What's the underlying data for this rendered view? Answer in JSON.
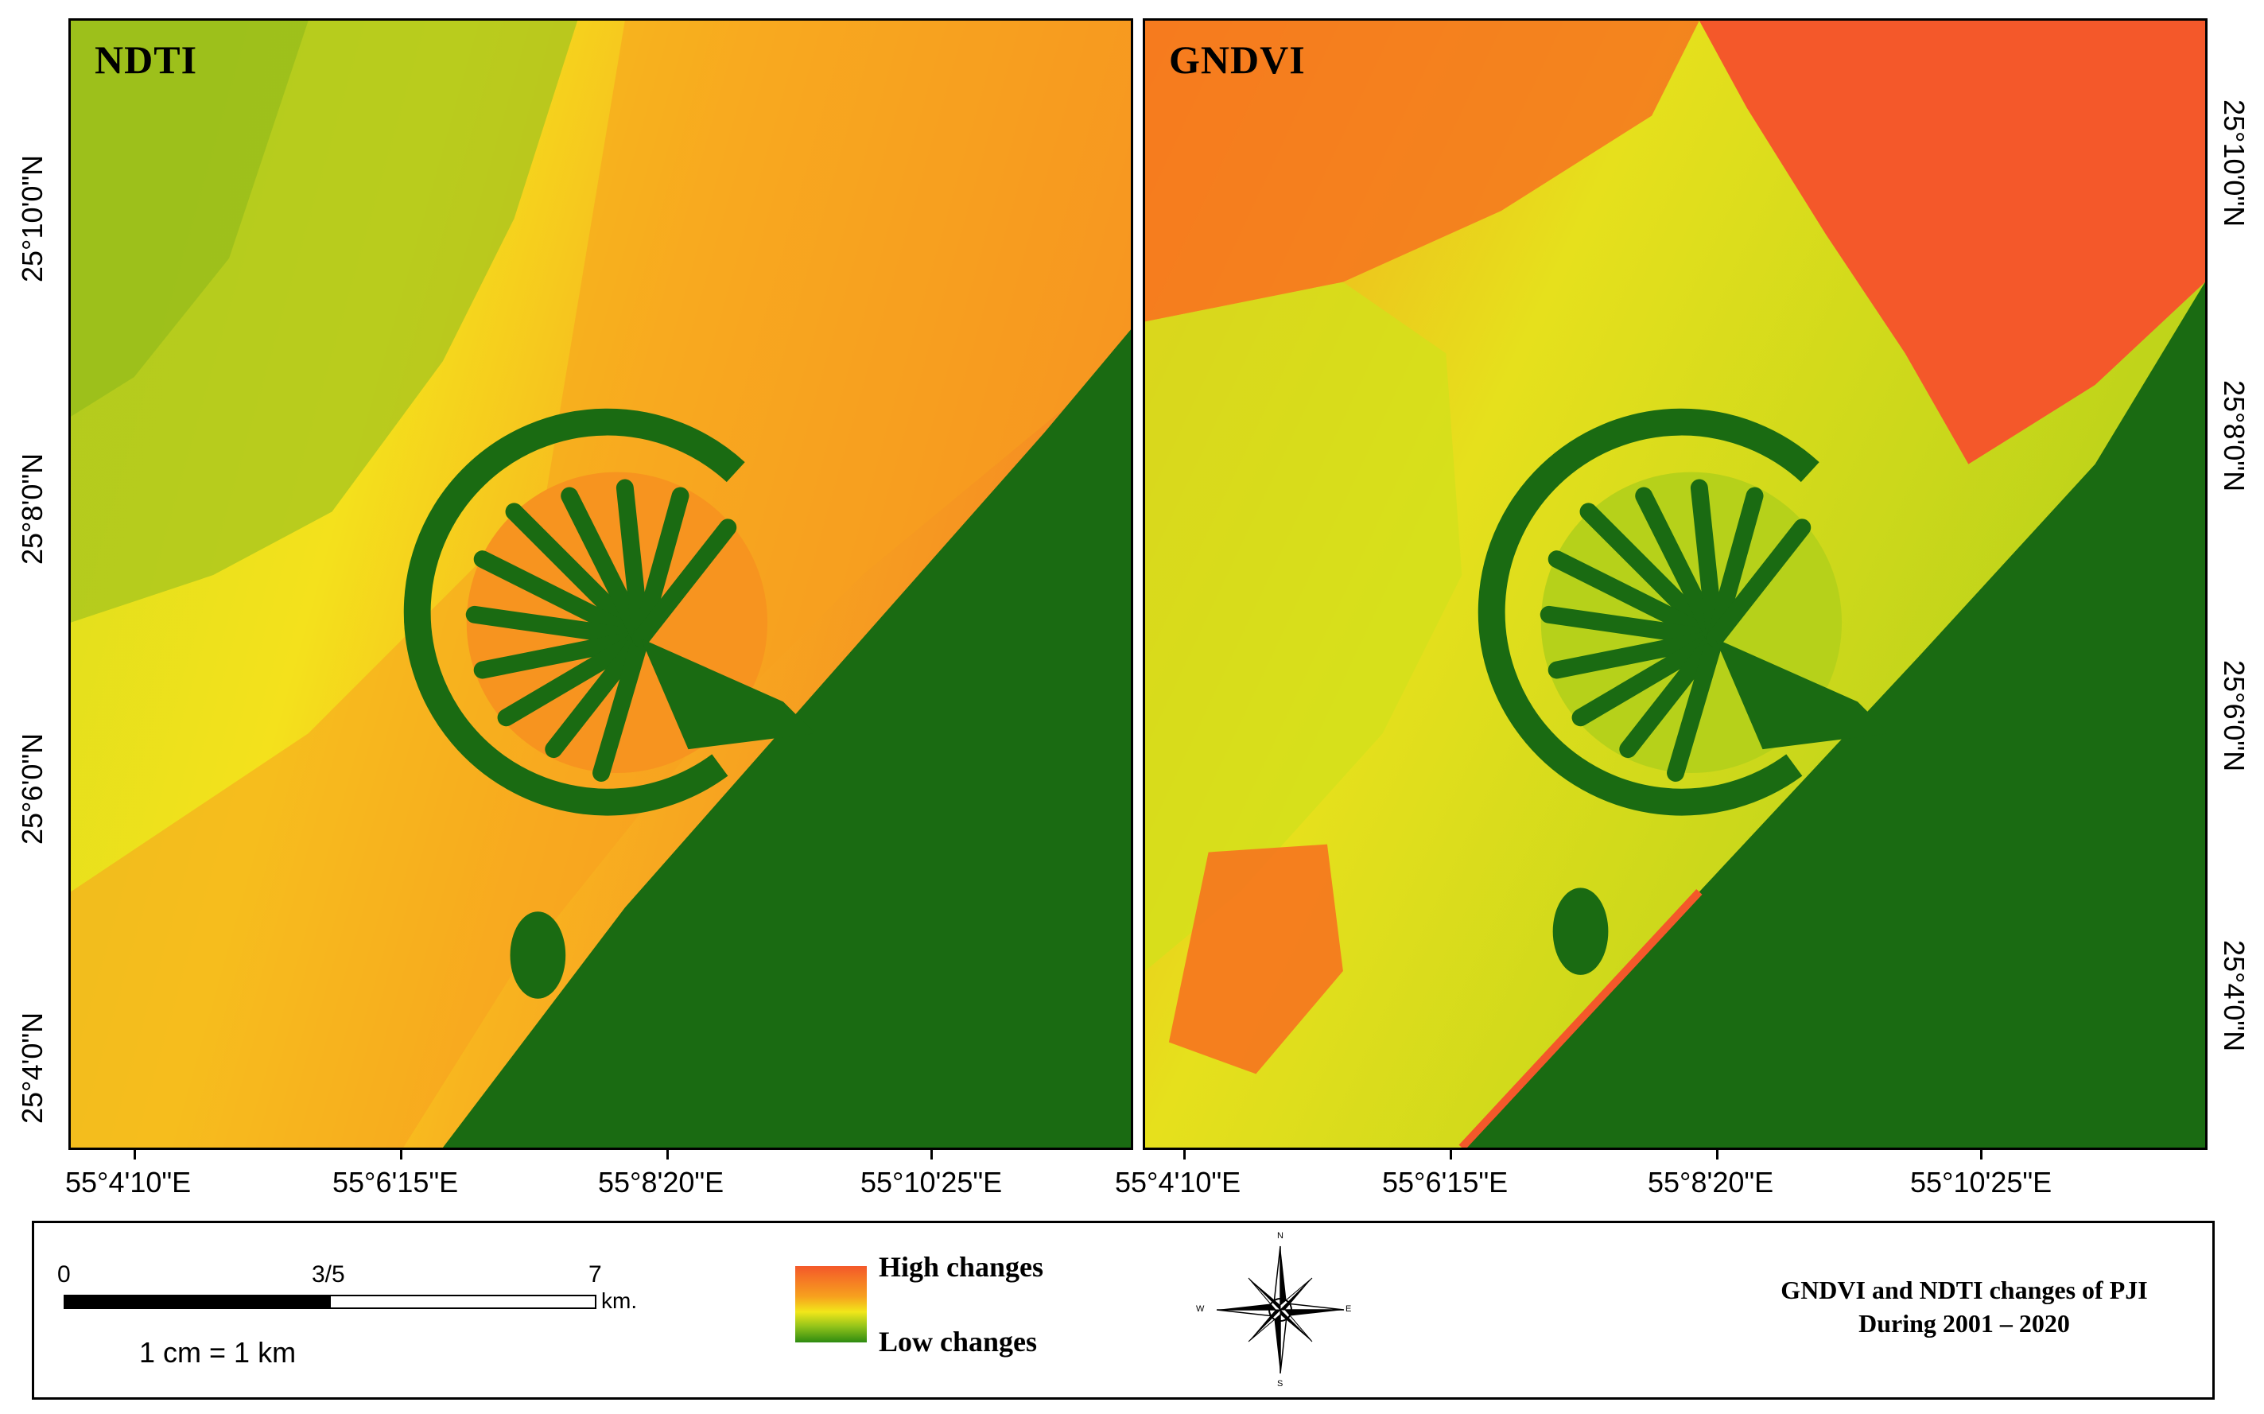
{
  "panels": [
    {
      "title": "NDTI"
    },
    {
      "title": "GNDVI"
    }
  ],
  "x_ticks": [
    "55°4'10\"E",
    "55°6'15\"E",
    "55°8'20\"E",
    "55°10'25\"E"
  ],
  "y_ticks": [
    "25°10'0\"N",
    "25°8'0\"N",
    "25°6'0\"N",
    "25°4'0\"N"
  ],
  "scale": {
    "start": "0",
    "mid": "3/5",
    "end": "7",
    "unit": "km.",
    "ratio": "1 cm = 1 km"
  },
  "legend": {
    "high": "High changes",
    "low": "Low changes"
  },
  "compass": {
    "n": "N",
    "s": "S",
    "e": "E",
    "w": "W"
  },
  "map_title": {
    "line1": "GNDVI and NDTI changes of PJI",
    "line2": "During 2001 – 2020"
  },
  "colors": {
    "high": "#f4582a",
    "mid": "#f2e71a",
    "low": "#2e8b11",
    "sea": "#1a6b12"
  }
}
